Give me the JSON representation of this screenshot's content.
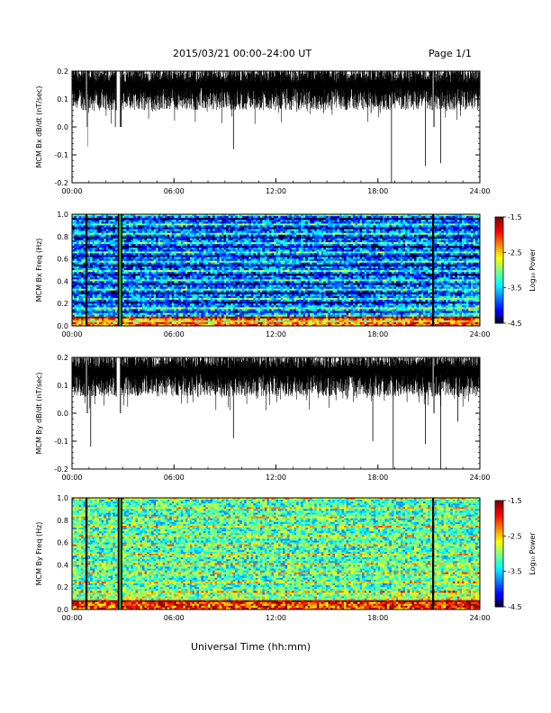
{
  "header": {
    "date_range": "2015/03/21  00:00–24:00 UT",
    "page": "Page 1/1"
  },
  "xaxis_label": "Universal Time (hh:mm)",
  "colorbar": {
    "label": "Log₁₀ Power",
    "ticks": [
      "-1.5",
      "-2.5",
      "-3.5",
      "-4.5"
    ]
  },
  "chart_data": [
    {
      "type": "line",
      "title": "",
      "ylabel": "MCM Bx dB/dt (nT/sec)",
      "xlabel": "",
      "ylim": [
        -0.2,
        0.2
      ],
      "yticks": [
        "0.2",
        "0.1",
        "0.0",
        "-0.1",
        "-0.2"
      ],
      "xticks": [
        "00:00",
        "06:00",
        "12:00",
        "18:00",
        "24:00"
      ],
      "series_name": "MCM Bx dB/dt",
      "gaps_hours": [
        [
          0.8,
          0.9
        ],
        [
          2.6,
          2.85
        ],
        [
          21.2,
          21.3
        ]
      ],
      "dips": [
        {
          "t": 0.9,
          "v": -0.07
        },
        {
          "t": 2.55,
          "v": 0.0
        },
        {
          "t": 2.9,
          "v": 0.0
        },
        {
          "t": 9.5,
          "v": -0.08
        },
        {
          "t": 18.8,
          "v": -0.2
        },
        {
          "t": 20.8,
          "v": -0.14
        },
        {
          "t": 21.7,
          "v": -0.13
        },
        {
          "t": 17.6,
          "v": 0.05
        },
        {
          "t": 14.8,
          "v": 0.05
        }
      ]
    },
    {
      "type": "heatmap",
      "title": "",
      "ylabel": "MCM Bx Freq (Hz)",
      "xlabel": "",
      "ylim": [
        0.0,
        1.0
      ],
      "yticks": [
        "1.0",
        "0.8",
        "0.6",
        "0.4",
        "0.2",
        "0.0"
      ],
      "xticks": [
        "00:00",
        "06:00",
        "12:00",
        "18:00",
        "24:00"
      ],
      "zlim": [
        -4.5,
        -1.5
      ],
      "zlabel": "Log₁₀ Power",
      "mean_power": -3.8,
      "low_freq_power": -2.5,
      "gap_lines_hours": [
        0.85,
        2.75,
        2.9,
        21.25
      ]
    },
    {
      "type": "line",
      "title": "",
      "ylabel": "MCM By dB/dt (nT/sec)",
      "xlabel": "",
      "ylim": [
        -0.2,
        0.2
      ],
      "yticks": [
        "0.2",
        "0.1",
        "0.0",
        "-0.1",
        "-0.2"
      ],
      "xticks": [
        "00:00",
        "06:00",
        "12:00",
        "18:00",
        "24:00"
      ],
      "series_name": "MCM By dB/dt",
      "gaps_hours": [
        [
          0.8,
          0.9
        ],
        [
          2.6,
          2.85
        ],
        [
          21.2,
          21.3
        ]
      ],
      "dips": [
        {
          "t": 1.1,
          "v": -0.12
        },
        {
          "t": 9.5,
          "v": -0.09
        },
        {
          "t": 17.7,
          "v": -0.1
        },
        {
          "t": 18.9,
          "v": -0.2
        },
        {
          "t": 20.8,
          "v": -0.11
        },
        {
          "t": 21.7,
          "v": -0.2
        },
        {
          "t": 22.7,
          "v": -0.03
        }
      ]
    },
    {
      "type": "heatmap",
      "title": "",
      "ylabel": "MCM By Freq (Hz)",
      "xlabel": "",
      "ylim": [
        0.0,
        1.0
      ],
      "yticks": [
        "1.0",
        "0.8",
        "0.6",
        "0.4",
        "0.2",
        "0.0"
      ],
      "xticks": [
        "00:00",
        "06:00",
        "12:00",
        "18:00",
        "24:00"
      ],
      "zlim": [
        -4.5,
        -1.5
      ],
      "zlabel": "Log₁₀ Power",
      "mean_power": -3.2,
      "low_freq_power": -2.3,
      "gap_lines_hours": [
        0.85,
        2.75,
        2.9,
        21.25
      ]
    }
  ]
}
